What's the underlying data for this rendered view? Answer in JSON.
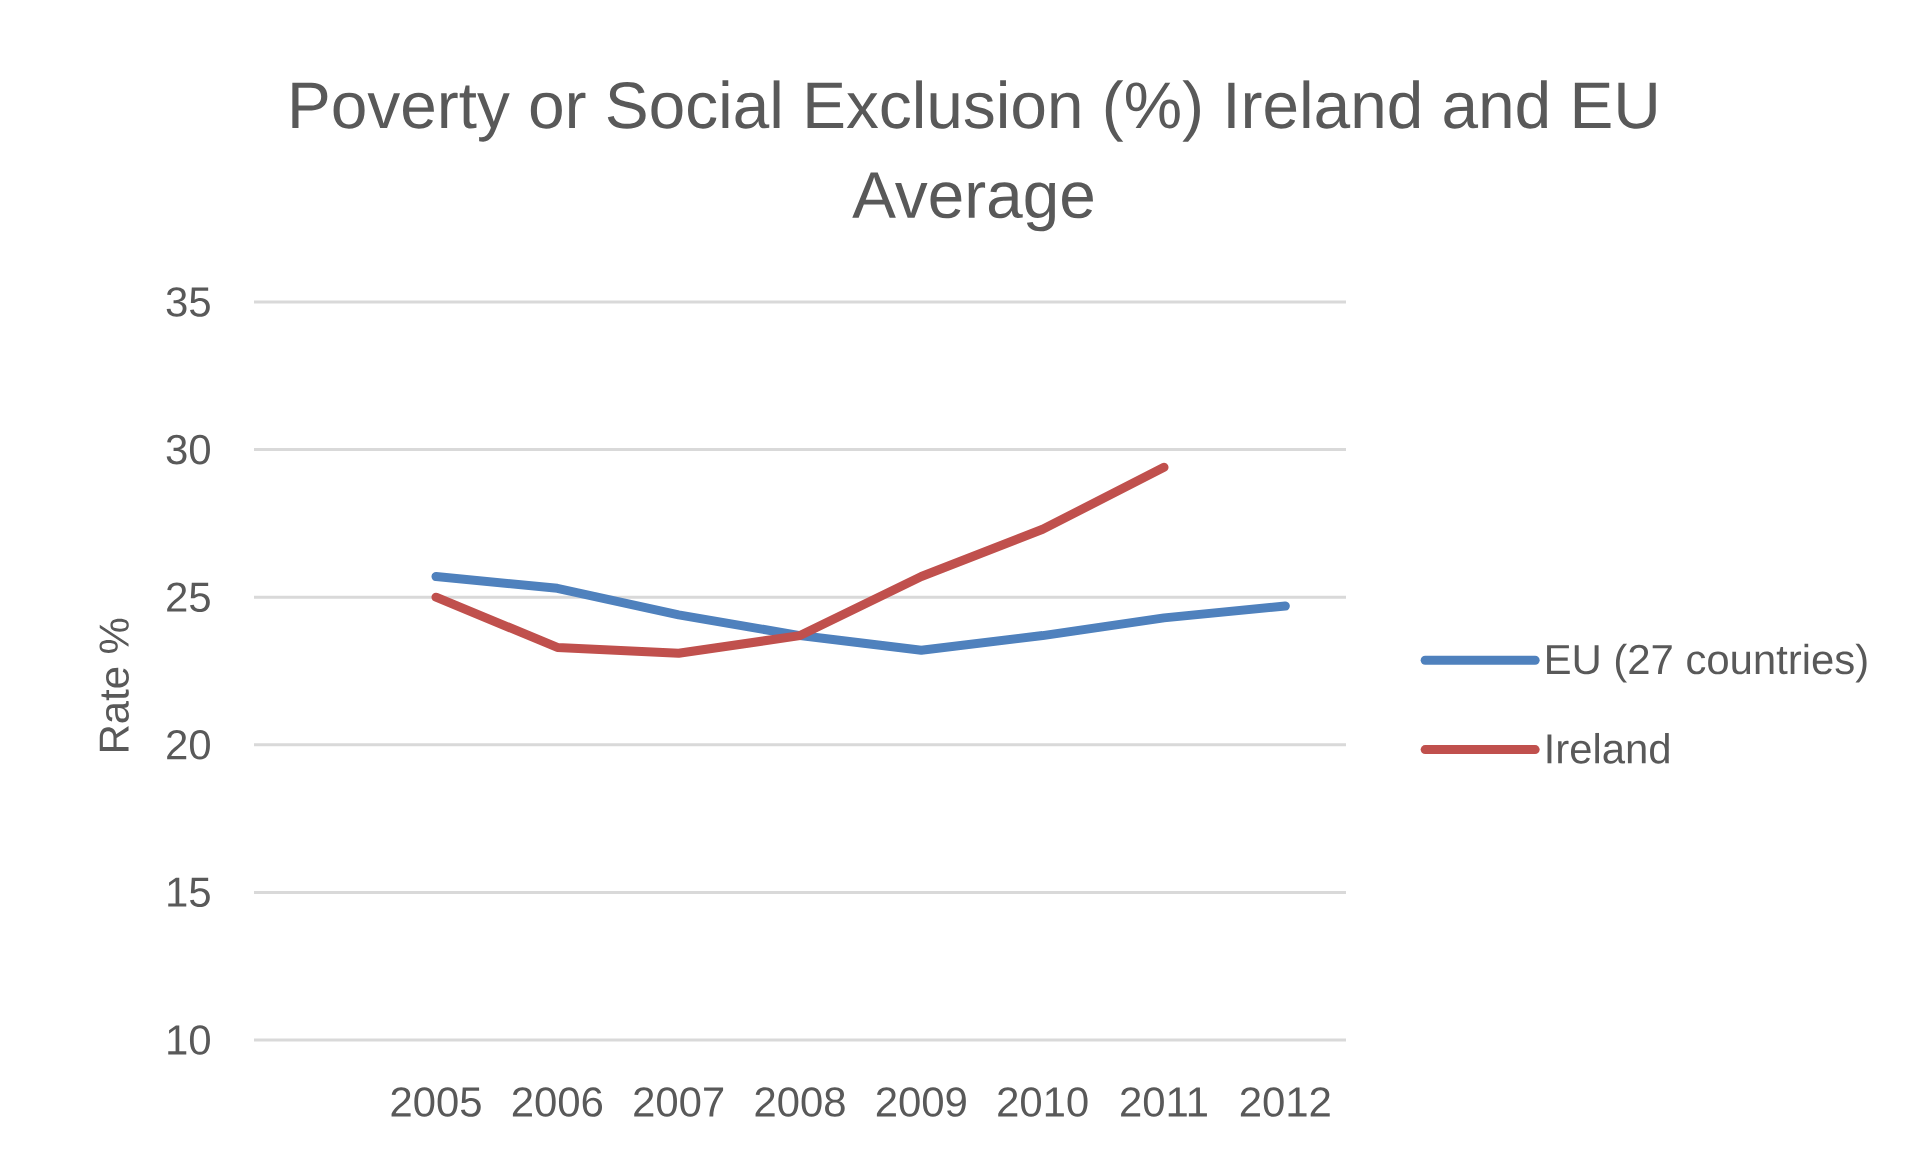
{
  "chart_data": {
    "type": "line",
    "title": "Poverty or Social Exclusion (%) Ireland and EU Average",
    "ylabel": "Rate %",
    "categories": [
      null,
      "2005",
      "2006",
      "2007",
      "2008",
      "2009",
      "2010",
      "2011",
      "2012"
    ],
    "series": [
      {
        "name": "EU (27 countries)",
        "color": "#4f81bd",
        "values": [
          null,
          25.7,
          25.3,
          24.4,
          23.7,
          23.2,
          23.7,
          24.3,
          24.7
        ]
      },
      {
        "name": "Ireland",
        "color": "#c0504d",
        "values": [
          null,
          25.0,
          23.3,
          23.1,
          23.7,
          25.7,
          27.3,
          29.4,
          null
        ]
      }
    ],
    "ylim": [
      10,
      35
    ],
    "yticks": [
      10,
      15,
      20,
      25,
      30,
      35
    ],
    "grid": "y",
    "legend": "right",
    "line_style": "solid"
  }
}
